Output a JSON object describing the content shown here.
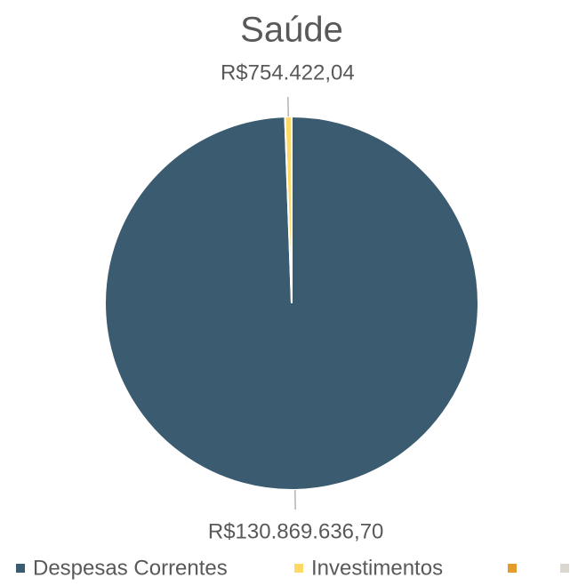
{
  "chart_data": {
    "type": "pie",
    "title": "Saúde",
    "categories": [
      "Despesas Correntes",
      "Investimentos",
      null,
      null
    ],
    "values": [
      130869636.7,
      754422.04,
      0,
      0
    ],
    "value_labels": [
      "R$130.869.636,70",
      "R$754.422,04",
      null,
      null
    ],
    "colors": [
      "#3b5b70",
      "#ffd966",
      "#e39b2c",
      "#dad7d0"
    ],
    "legend": "bottom"
  }
}
